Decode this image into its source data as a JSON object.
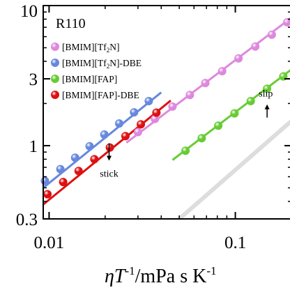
{
  "chart_data": {
    "type": "scatter",
    "title": "",
    "panel_label": "R110",
    "xscale": "log",
    "yscale": "log",
    "xlim": [
      0.0093,
      0.2
    ],
    "ylim": [
      0.3,
      10
    ],
    "xticks": [
      0.01,
      0.1
    ],
    "xtick_labels": [
      "0.01",
      "0.1"
    ],
    "yticks": [
      0.3,
      1,
      3,
      10
    ],
    "ytick_labels": [
      "0.3",
      "1",
      "3",
      "10"
    ],
    "xlabel_parts": {
      "eta_t": "ηT",
      "exponent": "-1",
      "units": "/mPa s K",
      "units_exp": "-1"
    },
    "ylabel": "",
    "legend_position": "top-left",
    "grid": false,
    "series": [
      {
        "name": "[BMIM][Tf2N]",
        "legend_main": "[BMIM][Tf",
        "legend_sub": "2",
        "legend_tail": "N]",
        "color": "#dd88dd",
        "x": [
          0.03,
          0.037,
          0.046,
          0.057,
          0.069,
          0.085,
          0.104,
          0.128,
          0.157,
          0.19
        ],
        "y": [
          1.25,
          1.55,
          1.9,
          2.3,
          2.8,
          3.4,
          4.2,
          5.1,
          6.2,
          7.6
        ],
        "fit": {
          "x": [
            0.026,
            0.2
          ],
          "y": [
            1.05,
            8.2
          ]
        }
      },
      {
        "name": "[BMIM][Tf2N]-DBE",
        "legend_main": "[BMIM][Tf",
        "legend_sub": "2",
        "legend_tail": "N]-DBE",
        "color": "#6688dd",
        "x": [
          0.0095,
          0.0115,
          0.0138,
          0.0165,
          0.0198,
          0.0238,
          0.0286,
          0.0343
        ],
        "y": [
          0.56,
          0.68,
          0.82,
          0.99,
          1.2,
          1.44,
          1.73,
          2.08
        ],
        "fit": {
          "x": [
            0.0093,
            0.04
          ],
          "y": [
            0.5,
            2.4
          ]
        }
      },
      {
        "name": "[BMIM][FAP]",
        "legend_main": "[BMIM][FAP]",
        "legend_sub": "",
        "legend_tail": "",
        "color": "#66cc33",
        "x": [
          0.054,
          0.066,
          0.081,
          0.099,
          0.121,
          0.148,
          0.181
        ],
        "y": [
          0.92,
          1.13,
          1.39,
          1.7,
          2.08,
          2.55,
          3.12
        ],
        "fit": {
          "x": [
            0.046,
            0.2
          ],
          "y": [
            0.79,
            3.5
          ]
        }
      },
      {
        "name": "[BMIM][FAP]-DBE",
        "legend_main": "[BMIM][FAP]-DBE",
        "legend_sub": "",
        "legend_tail": "",
        "color": "#dd1111",
        "x": [
          0.0098,
          0.0119,
          0.0144,
          0.0175,
          0.0212,
          0.0257,
          0.0311,
          0.0377
        ],
        "y": [
          0.45,
          0.55,
          0.66,
          0.8,
          0.97,
          1.17,
          1.42,
          1.72
        ],
        "fit": {
          "x": [
            0.0093,
            0.045
          ],
          "y": [
            0.38,
            2.1
          ]
        }
      }
    ],
    "reference_line": {
      "color": "#dddddd",
      "x": [
        0.05,
        0.2
      ],
      "y": [
        0.3,
        1.5
      ]
    },
    "annotations": [
      {
        "text": "stick",
        "arrow": "down",
        "x": 0.021,
        "y": 0.6
      },
      {
        "text": "slip",
        "arrow": "up",
        "x": 0.17,
        "y": 1.55
      }
    ]
  }
}
